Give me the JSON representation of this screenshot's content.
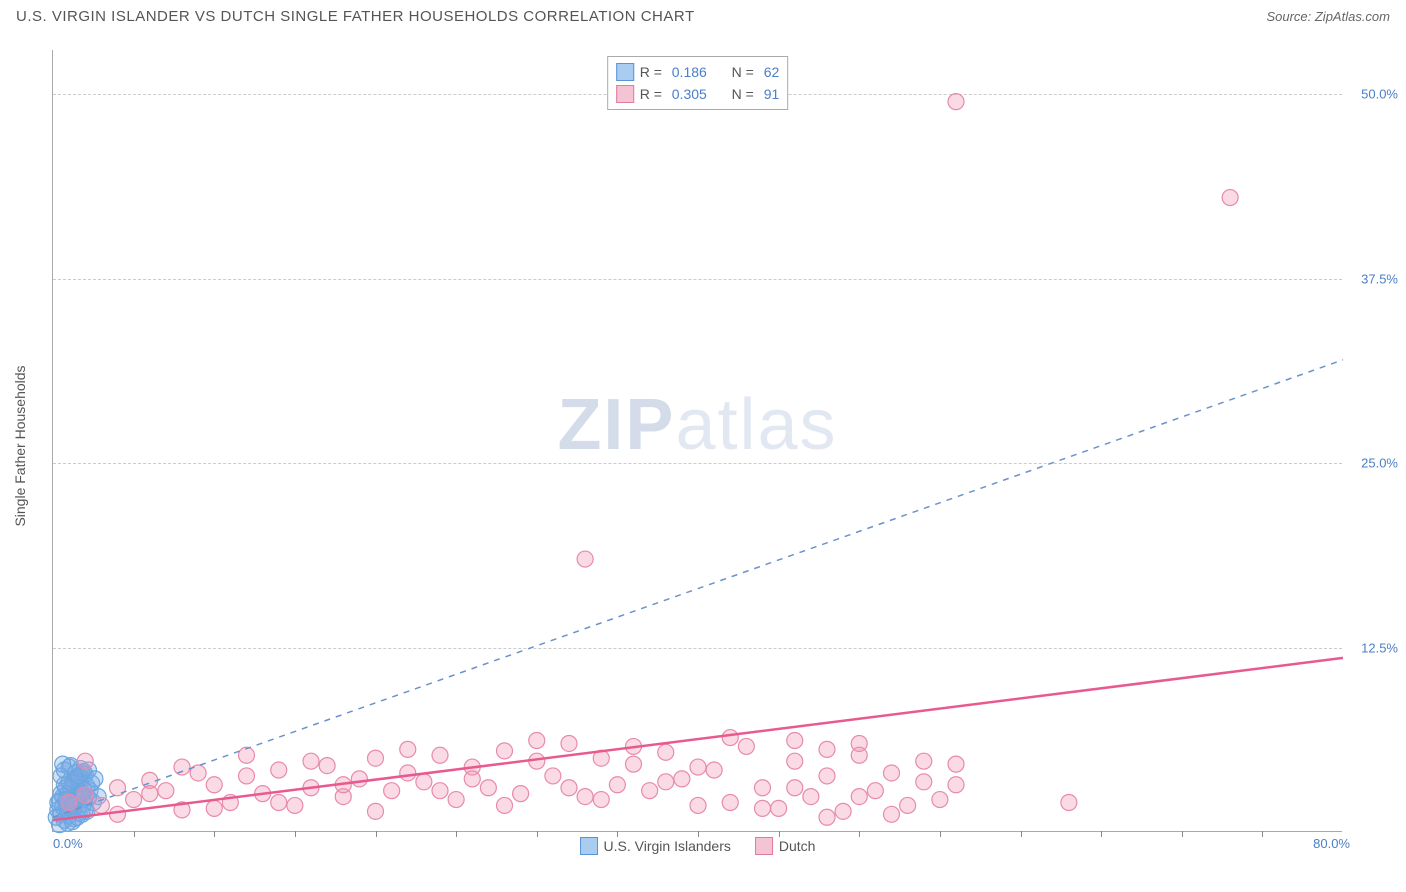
{
  "title": "U.S. VIRGIN ISLANDER VS DUTCH SINGLE FATHER HOUSEHOLDS CORRELATION CHART",
  "source_prefix": "Source: ",
  "source": "ZipAtlas.com",
  "ylabel": "Single Father Households",
  "watermark_a": "ZIP",
  "watermark_b": "atlas",
  "chart": {
    "type": "scatter",
    "xlim": [
      0,
      80
    ],
    "ylim": [
      0,
      53
    ],
    "xorigin_label": "0.0%",
    "xmax_label": "80.0%",
    "yticks": [
      {
        "v": 12.5,
        "label": "12.5%"
      },
      {
        "v": 25.0,
        "label": "25.0%"
      },
      {
        "v": 37.5,
        "label": "37.5%"
      },
      {
        "v": 50.0,
        "label": "50.0%"
      }
    ],
    "xtick_step": 5,
    "background_color": "#ffffff",
    "grid_color": "#cccccc",
    "axis_color": "#aaaaaa",
    "point_radius": 8,
    "point_stroke_width": 1.2,
    "series": [
      {
        "name": "U.S. Virgin Islanders",
        "fill": "rgba(120,170,230,0.35)",
        "stroke": "#6aa6e0",
        "swatch_fill": "#a9cdf0",
        "swatch_border": "#5b94d6",
        "r_label": "R =",
        "r_value": "0.186",
        "n_label": "N =",
        "n_value": "62",
        "regression": {
          "x1": 0,
          "y1": 1.0,
          "x2": 80,
          "y2": 32.0,
          "dash": "6,6",
          "width": 1.5,
          "color": "#6a93cc"
        },
        "points": [
          [
            0.2,
            1.0
          ],
          [
            0.3,
            1.5
          ],
          [
            0.4,
            2.1
          ],
          [
            0.5,
            1.2
          ],
          [
            0.6,
            2.4
          ],
          [
            0.7,
            0.8
          ],
          [
            0.8,
            1.8
          ],
          [
            0.9,
            2.6
          ],
          [
            1.0,
            1.1
          ],
          [
            1.1,
            2.9
          ],
          [
            1.2,
            3.3
          ],
          [
            1.3,
            1.6
          ],
          [
            1.4,
            2.0
          ],
          [
            1.5,
            3.6
          ],
          [
            1.6,
            1.3
          ],
          [
            1.7,
            2.7
          ],
          [
            1.8,
            4.0
          ],
          [
            1.9,
            1.9
          ],
          [
            2.0,
            2.4
          ],
          [
            2.1,
            3.1
          ],
          [
            0.5,
            3.8
          ],
          [
            0.7,
            4.2
          ],
          [
            0.9,
            0.6
          ],
          [
            1.1,
            4.5
          ],
          [
            1.3,
            0.9
          ],
          [
            1.5,
            2.2
          ],
          [
            1.7,
            3.4
          ],
          [
            1.9,
            4.1
          ],
          [
            2.1,
            1.4
          ],
          [
            2.3,
            2.8
          ],
          [
            0.4,
            0.5
          ],
          [
            0.6,
            1.7
          ],
          [
            0.8,
            3.0
          ],
          [
            1.0,
            4.4
          ],
          [
            1.2,
            0.7
          ],
          [
            1.4,
            3.7
          ],
          [
            1.6,
            2.5
          ],
          [
            1.8,
            1.2
          ],
          [
            2.0,
            3.9
          ],
          [
            2.2,
            2.3
          ],
          [
            0.3,
            2.0
          ],
          [
            0.5,
            2.6
          ],
          [
            0.7,
            3.2
          ],
          [
            0.9,
            1.4
          ],
          [
            1.1,
            2.1
          ],
          [
            1.3,
            3.5
          ],
          [
            1.5,
            1.0
          ],
          [
            1.7,
            4.3
          ],
          [
            1.9,
            2.9
          ],
          [
            2.4,
            3.3
          ],
          [
            0.6,
            4.6
          ],
          [
            0.8,
            2.2
          ],
          [
            1.0,
            3.4
          ],
          [
            1.2,
            1.8
          ],
          [
            1.4,
            4.0
          ],
          [
            1.6,
            3.8
          ],
          [
            1.8,
            2.6
          ],
          [
            2.0,
            1.5
          ],
          [
            2.2,
            4.2
          ],
          [
            2.5,
            2.0
          ],
          [
            2.6,
            3.6
          ],
          [
            2.8,
            2.4
          ]
        ]
      },
      {
        "name": "Dutch",
        "fill": "rgba(240,150,180,0.35)",
        "stroke": "#e88aaa",
        "swatch_fill": "#f5c4d4",
        "swatch_border": "#e07ba0",
        "r_label": "R =",
        "r_value": "0.305",
        "n_label": "N =",
        "n_value": "91",
        "regression": {
          "x1": 0,
          "y1": 0.8,
          "x2": 80,
          "y2": 11.8,
          "dash": "",
          "width": 2.5,
          "color": "#e85a8f"
        },
        "points": [
          [
            1,
            2.0
          ],
          [
            2,
            2.5
          ],
          [
            3,
            1.8
          ],
          [
            4,
            3.0
          ],
          [
            5,
            2.2
          ],
          [
            6,
            3.5
          ],
          [
            7,
            2.8
          ],
          [
            8,
            1.5
          ],
          [
            9,
            4.0
          ],
          [
            10,
            3.2
          ],
          [
            11,
            2.0
          ],
          [
            12,
            3.8
          ],
          [
            13,
            2.6
          ],
          [
            14,
            4.2
          ],
          [
            15,
            1.8
          ],
          [
            16,
            3.0
          ],
          [
            17,
            4.5
          ],
          [
            18,
            2.4
          ],
          [
            19,
            3.6
          ],
          [
            20,
            5.0
          ],
          [
            21,
            2.8
          ],
          [
            22,
            4.0
          ],
          [
            23,
            3.4
          ],
          [
            24,
            5.2
          ],
          [
            25,
            2.2
          ],
          [
            26,
            4.4
          ],
          [
            27,
            3.0
          ],
          [
            28,
            5.5
          ],
          [
            29,
            2.6
          ],
          [
            30,
            4.8
          ],
          [
            31,
            3.8
          ],
          [
            32,
            6.0
          ],
          [
            33,
            2.4
          ],
          [
            34,
            5.0
          ],
          [
            35,
            3.2
          ],
          [
            36,
            4.6
          ],
          [
            37,
            2.8
          ],
          [
            38,
            5.4
          ],
          [
            39,
            3.6
          ],
          [
            40,
            1.8
          ],
          [
            41,
            4.2
          ],
          [
            42,
            2.0
          ],
          [
            43,
            5.8
          ],
          [
            44,
            3.0
          ],
          [
            45,
            1.6
          ],
          [
            46,
            4.8
          ],
          [
            47,
            2.4
          ],
          [
            48,
            3.8
          ],
          [
            49,
            1.4
          ],
          [
            50,
            5.2
          ],
          [
            51,
            2.8
          ],
          [
            52,
            4.0
          ],
          [
            53,
            1.8
          ],
          [
            54,
            3.4
          ],
          [
            55,
            2.2
          ],
          [
            56,
            4.6
          ],
          [
            33,
            18.5
          ],
          [
            56,
            49.5
          ],
          [
            73,
            43.0
          ],
          [
            63,
            2.0
          ],
          [
            2,
            4.8
          ],
          [
            4,
            1.2
          ],
          [
            6,
            2.6
          ],
          [
            8,
            4.4
          ],
          [
            10,
            1.6
          ],
          [
            12,
            5.2
          ],
          [
            14,
            2.0
          ],
          [
            16,
            4.8
          ],
          [
            18,
            3.2
          ],
          [
            20,
            1.4
          ],
          [
            22,
            5.6
          ],
          [
            24,
            2.8
          ],
          [
            26,
            3.6
          ],
          [
            28,
            1.8
          ],
          [
            30,
            6.2
          ],
          [
            32,
            3.0
          ],
          [
            34,
            2.2
          ],
          [
            36,
            5.8
          ],
          [
            38,
            3.4
          ],
          [
            40,
            4.4
          ],
          [
            42,
            6.4
          ],
          [
            44,
            1.6
          ],
          [
            46,
            3.0
          ],
          [
            48,
            5.6
          ],
          [
            50,
            2.4
          ],
          [
            52,
            1.2
          ],
          [
            54,
            4.8
          ],
          [
            56,
            3.2
          ],
          [
            50,
            6.0
          ],
          [
            48,
            1.0
          ],
          [
            46,
            6.2
          ]
        ]
      }
    ]
  }
}
